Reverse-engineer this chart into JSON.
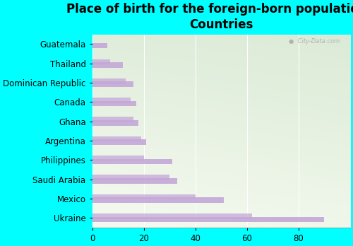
{
  "title": "Place of birth for the foreign-born population -\nCountries",
  "categories": [
    "Ukraine",
    "Mexico",
    "Saudi Arabia",
    "Philippines",
    "Argentina",
    "Ghana",
    "Canada",
    "Dominican Republic",
    "Thailand",
    "Guatemala"
  ],
  "values1": [
    90,
    51,
    33,
    31,
    21,
    18,
    17,
    16,
    12,
    6
  ],
  "values2": [
    62,
    40,
    30,
    20,
    19,
    16,
    15,
    13,
    7,
    0
  ],
  "bar_color": "#c4a8d8",
  "background_color": "#00ffff",
  "plot_bg_topleft": "#e8f5e9",
  "plot_bg_bottomright": "#c8e6c9",
  "title_fontsize": 12,
  "tick_fontsize": 8.5,
  "xlim": [
    0,
    100
  ],
  "xticks": [
    0,
    20,
    40,
    60,
    80
  ],
  "watermark": "City-Data.com",
  "grid_color": "#ffffff",
  "bar_height": 0.28
}
